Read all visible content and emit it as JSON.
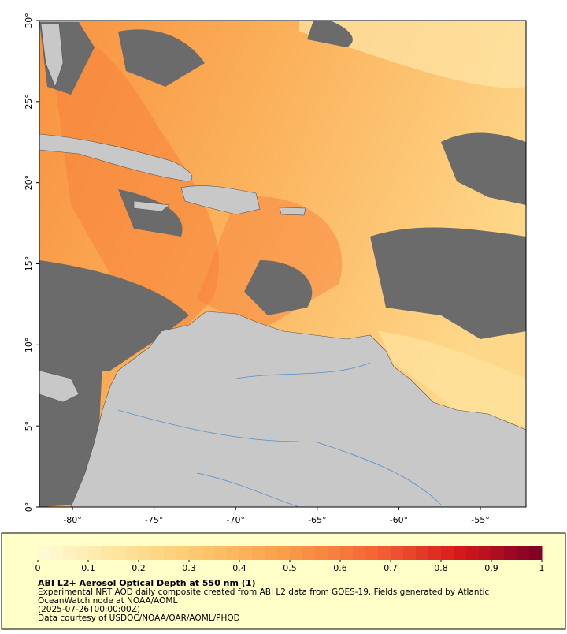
{
  "map": {
    "lon_range": [
      -82.03,
      -52.2
    ],
    "lat_range": [
      0,
      30
    ],
    "lat_ticks": [
      {
        "value": 0,
        "label": "0°"
      },
      {
        "value": 5,
        "label": "5°"
      },
      {
        "value": 10,
        "label": "10°"
      },
      {
        "value": 15,
        "label": "15°"
      },
      {
        "value": 20,
        "label": "20°"
      },
      {
        "value": 25,
        "label": "25°"
      },
      {
        "value": 30,
        "label": "30°"
      }
    ],
    "lon_ticks": [
      {
        "value": -80,
        "label": "-80°"
      },
      {
        "value": -75,
        "label": "-75°"
      },
      {
        "value": -70,
        "label": "-70°"
      },
      {
        "value": -65,
        "label": "-65°"
      },
      {
        "value": -60,
        "label": "-60°"
      },
      {
        "value": -55,
        "label": "-55°"
      }
    ]
  },
  "colorbar": {
    "range": [
      0,
      1
    ],
    "ticks": [
      0,
      0.1,
      0.2,
      0.3,
      0.4,
      0.5,
      0.6,
      0.7,
      0.8,
      0.9,
      1
    ],
    "colormap": [
      "#fffbd8",
      "#fee39a",
      "#fdc46a",
      "#fb9b48",
      "#f46536",
      "#d7191c",
      "#7a0026"
    ]
  },
  "caption": {
    "title": "ABI L2+ Aerosol Optical Depth at 550 nm (1)",
    "lines": [
      "Experimental NRT AOD daily composite created from ABI L2 data from GOES-19. Fields generated by Atlantic",
      "OceanWatch node at NOAA/AOML",
      "(2025-07-26T00:00:00Z)",
      "Data courtesy of USDOC/NOAA/OAR/AOML/PHOD"
    ]
  }
}
